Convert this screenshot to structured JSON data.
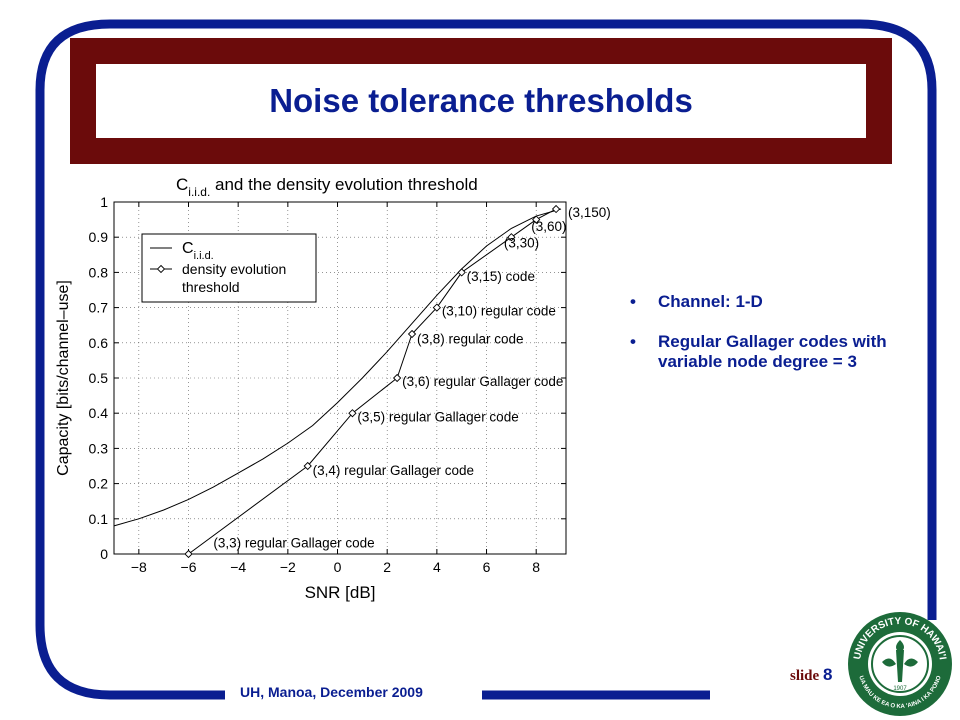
{
  "slide": {
    "title": "Noise tolerance thresholds",
    "bullets": [
      "Channel: 1-D",
      "Regular Gallager codes with variable node degree = 3"
    ],
    "footer": "UH, Manoa, December 2009",
    "slide_label": "slide",
    "slide_number": "8"
  },
  "seal": {
    "text": "UNIVERSITY OF HAWAI'I",
    "motto": "UA MAU KE EA O KA 'AINA I KA PONO",
    "year": "1907"
  },
  "colors": {
    "frame_blue": "#0a1e91",
    "title_maroon": "#6b0b0b",
    "text_blue": "#0a1e91",
    "seal_green": "#1d6b3a"
  },
  "chart_data": {
    "type": "line",
    "title_main": "C",
    "title_sub": "i.i.d.",
    "title_rest": " and the density evolution threshold",
    "xlabel": "SNR [dB]",
    "ylabel": "Capacity [bits/channel–use]",
    "xlim": [
      -9,
      9.2
    ],
    "ylim": [
      0,
      1
    ],
    "xticks": [
      -8,
      -6,
      -4,
      -2,
      0,
      2,
      4,
      6,
      8
    ],
    "xtick_labels": [
      "−8",
      "−6",
      "−4",
      "−2",
      "0",
      "2",
      "4",
      "6",
      "8"
    ],
    "yticks": [
      0,
      0.1,
      0.2,
      0.3,
      0.4,
      0.5,
      0.6,
      0.7,
      0.8,
      0.9,
      1
    ],
    "ytick_labels": [
      "0",
      "0.1",
      "0.2",
      "0.3",
      "0.4",
      "0.5",
      "0.6",
      "0.7",
      "0.8",
      "0.9",
      "1"
    ],
    "grid": "dotted",
    "legend_placement": "top-left",
    "series": [
      {
        "name": "C",
        "name_sub": "i.i.d.",
        "marker": "none",
        "x": [
          -9,
          -8,
          -7,
          -6,
          -5,
          -4,
          -3,
          -2,
          -1,
          0,
          1,
          2,
          3,
          4,
          5,
          6,
          7,
          8,
          9
        ],
        "y": [
          0.08,
          0.1,
          0.125,
          0.155,
          0.19,
          0.23,
          0.27,
          0.315,
          0.365,
          0.43,
          0.5,
          0.575,
          0.655,
          0.735,
          0.81,
          0.875,
          0.925,
          0.96,
          0.98
        ]
      },
      {
        "name": "density evolution",
        "name_line2": "threshold",
        "marker": "diamond",
        "x": [
          -6.0,
          -1.2,
          0.6,
          2.4,
          3.0,
          4.0,
          5.0,
          7.0,
          8.0,
          8.8
        ],
        "y": [
          0.0,
          0.25,
          0.4,
          0.5,
          0.625,
          0.7,
          0.8,
          0.9,
          0.95,
          0.98
        ]
      }
    ],
    "annotations": [
      {
        "text": "(3,3) regular Gallager code",
        "x": -5.0,
        "y": 0.032
      },
      {
        "text": "(3,4) regular Gallager code",
        "x": -1.0,
        "y": 0.238
      },
      {
        "text": "(3,5) regular Gallager code",
        "x": 0.8,
        "y": 0.39
      },
      {
        "text": "(3,6) regular Gallager code",
        "x": 2.6,
        "y": 0.492
      },
      {
        "text": "(3,8) regular code",
        "x": 3.2,
        "y": 0.612
      },
      {
        "text": "(3,10) regular code",
        "x": 4.2,
        "y": 0.692
      },
      {
        "text": "(3,15) code",
        "x": 5.2,
        "y": 0.79
      },
      {
        "text": "(3,30)",
        "x": 6.7,
        "y": 0.885
      },
      {
        "text": "(3,60)",
        "x": 7.8,
        "y": 0.932
      },
      {
        "text": "(3,150)",
        "x": 9.2,
        "y": 0.972
      }
    ]
  }
}
